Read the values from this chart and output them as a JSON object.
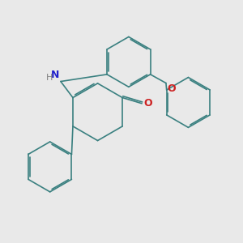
{
  "background_color": "#e9e9e9",
  "bond_color": "#3a8080",
  "N_color": "#2222cc",
  "O_color": "#cc2222",
  "H_color": "#808080",
  "bond_width": 1.2,
  "font_size_N": 9,
  "font_size_H": 8,
  "font_size_O": 9,
  "figsize": [
    3.0,
    3.0
  ],
  "dpi": 100,
  "xlim": [
    0,
    10
  ],
  "ylim": [
    0,
    10
  ]
}
